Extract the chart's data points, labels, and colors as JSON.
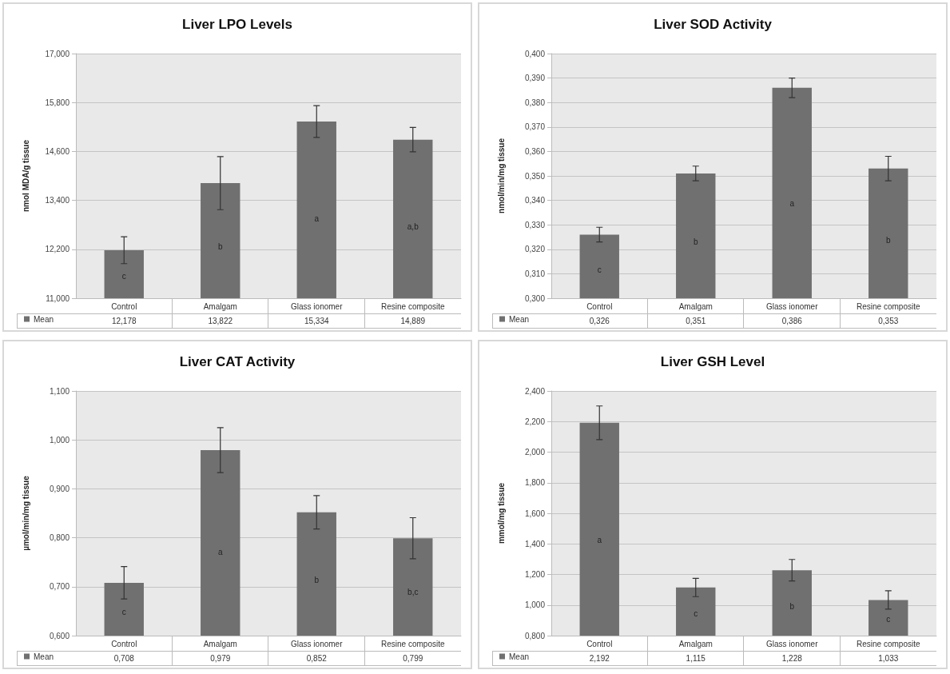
{
  "chart_data": [
    {
      "type": "bar",
      "title": "Liver LPO Levels",
      "ylabel": "nmol MDA/g tissue",
      "categories": [
        "Control",
        "Amalgam",
        "Glass ionomer",
        "Resine composite"
      ],
      "series": [
        {
          "name": "Mean",
          "color": "#707070",
          "values": [
            12.178,
            13.822,
            15.334,
            14.889
          ],
          "errors": [
            0.33,
            0.65,
            0.39,
            0.3
          ],
          "value_labels": [
            "12,178",
            "13,822",
            "15,334",
            "14,889"
          ]
        }
      ],
      "ylim": [
        11,
        17
      ],
      "yticks": [
        {
          "value": 11,
          "label": "11,000"
        },
        {
          "value": 12.2,
          "label": "12,200"
        },
        {
          "value": 13.4,
          "label": "13,400"
        },
        {
          "value": 14.6,
          "label": "14,600"
        },
        {
          "value": 15.8,
          "label": "15,800"
        },
        {
          "value": 17,
          "label": "17,000"
        }
      ],
      "grid": "y",
      "legend": "bottom left",
      "annotations": [
        "c",
        "b",
        "a",
        "a,b"
      ]
    },
    {
      "type": "bar",
      "title": "Liver SOD Activity",
      "ylabel": "nmol/min/mg tissue",
      "categories": [
        "Control",
        "Amalgam",
        "Glass ionomer",
        "Resine composite"
      ],
      "series": [
        {
          "name": "Mean",
          "color": "#707070",
          "values": [
            0.326,
            0.351,
            0.386,
            0.353
          ],
          "errors": [
            0.003,
            0.003,
            0.004,
            0.005
          ],
          "value_labels": [
            "0,326",
            "0,351",
            "0,386",
            "0,353"
          ]
        }
      ],
      "ylim": [
        0.3,
        0.4
      ],
      "yticks": [
        {
          "value": 0.3,
          "label": "0,300"
        },
        {
          "value": 0.31,
          "label": "0,310"
        },
        {
          "value": 0.32,
          "label": "0,320"
        },
        {
          "value": 0.33,
          "label": "0,330"
        },
        {
          "value": 0.34,
          "label": "0,340"
        },
        {
          "value": 0.35,
          "label": "0,350"
        },
        {
          "value": 0.36,
          "label": "0,360"
        },
        {
          "value": 0.37,
          "label": "0,370"
        },
        {
          "value": 0.38,
          "label": "0,380"
        },
        {
          "value": 0.39,
          "label": "0,390"
        },
        {
          "value": 0.4,
          "label": "0,400"
        }
      ],
      "grid": "y",
      "legend": "bottom left",
      "annotations": [
        "c",
        "b",
        "a",
        "b"
      ]
    },
    {
      "type": "bar",
      "title": "Liver CAT Activity",
      "ylabel": "µmol/min/mg tissue",
      "categories": [
        "Control",
        "Amalgam",
        "Glass ionomer",
        "Resine composite"
      ],
      "series": [
        {
          "name": "Mean",
          "color": "#707070",
          "values": [
            0.708,
            0.979,
            0.852,
            0.799
          ],
          "errors": [
            0.033,
            0.046,
            0.034,
            0.042
          ],
          "value_labels": [
            "0,708",
            "0,979",
            "0,852",
            "0,799"
          ]
        }
      ],
      "ylim": [
        0.6,
        1.1
      ],
      "yticks": [
        {
          "value": 0.6,
          "label": "0,600"
        },
        {
          "value": 0.7,
          "label": "0,700"
        },
        {
          "value": 0.8,
          "label": "0,800"
        },
        {
          "value": 0.9,
          "label": "0,900"
        },
        {
          "value": 1.0,
          "label": "1,000"
        },
        {
          "value": 1.1,
          "label": "1,100"
        }
      ],
      "grid": "y",
      "legend": "bottom left",
      "annotations": [
        "c",
        "a",
        "b",
        "b,c"
      ]
    },
    {
      "type": "bar",
      "title": "Liver GSH Level",
      "ylabel": "mmol/mg tissue",
      "categories": [
        "Control",
        "Amalgam",
        "Glass ionomer",
        "Resine composite"
      ],
      "series": [
        {
          "name": "Mean",
          "color": "#707070",
          "values": [
            2.192,
            1.115,
            1.228,
            1.033
          ],
          "errors": [
            0.11,
            0.06,
            0.07,
            0.06
          ],
          "value_labels": [
            "2,192",
            "1,115",
            "1,228",
            "1,033"
          ]
        }
      ],
      "ylim": [
        0.8,
        2.4
      ],
      "yticks": [
        {
          "value": 0.8,
          "label": "0,800"
        },
        {
          "value": 1.0,
          "label": "1,000"
        },
        {
          "value": 1.2,
          "label": "1,200"
        },
        {
          "value": 1.4,
          "label": "1,400"
        },
        {
          "value": 1.6,
          "label": "1,600"
        },
        {
          "value": 1.8,
          "label": "1,800"
        },
        {
          "value": 2.0,
          "label": "2,000"
        },
        {
          "value": 2.2,
          "label": "2,200"
        },
        {
          "value": 2.4,
          "label": "2,400"
        }
      ],
      "grid": "y",
      "legend": "bottom left",
      "annotations": [
        "a",
        "c",
        "b",
        "c"
      ]
    }
  ]
}
